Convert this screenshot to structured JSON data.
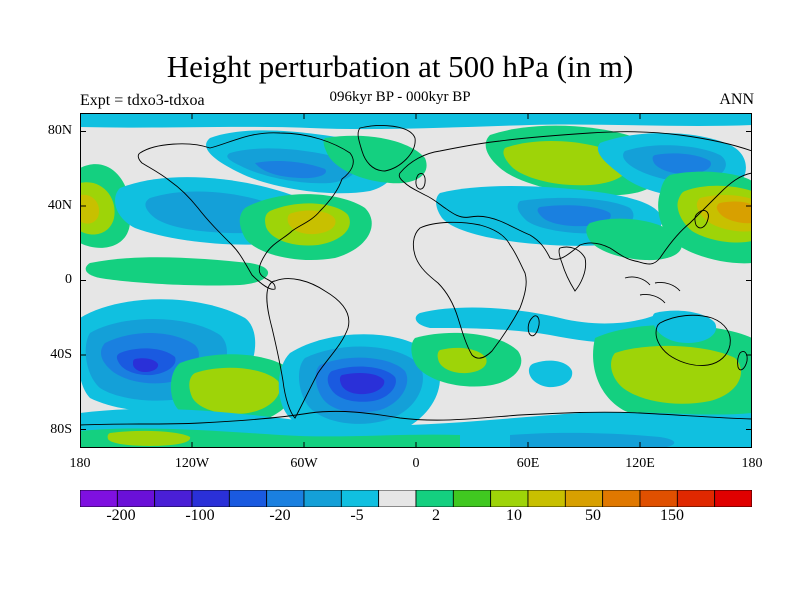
{
  "title": "Height perturbation at 500 hPa (in m)",
  "subtitle": "096kyr BP - 000kyr BP",
  "left_label": "Expt = tdxo3-tdxoa",
  "right_label": "ANN",
  "lat_ticks": [
    "80N",
    "40N",
    "0",
    "40S",
    "80S"
  ],
  "lon_ticks": [
    "180",
    "120W",
    "60W",
    "0",
    "60E",
    "120E",
    "180"
  ],
  "colorbar": {
    "colors": [
      "#7f10e0",
      "#6a10d8",
      "#4a1fd6",
      "#2a30d8",
      "#1a5ae0",
      "#1a80e0",
      "#14a0d8",
      "#10c0e0",
      "#e6e6e6",
      "#14d080",
      "#40c820",
      "#9ed408",
      "#c8c000",
      "#d8a000",
      "#e07800",
      "#e05000",
      "#e02800",
      "#e00000"
    ],
    "labels": [
      "-200",
      "-100",
      "-20",
      "-5",
      "2",
      "10",
      "50",
      "150"
    ]
  }
}
